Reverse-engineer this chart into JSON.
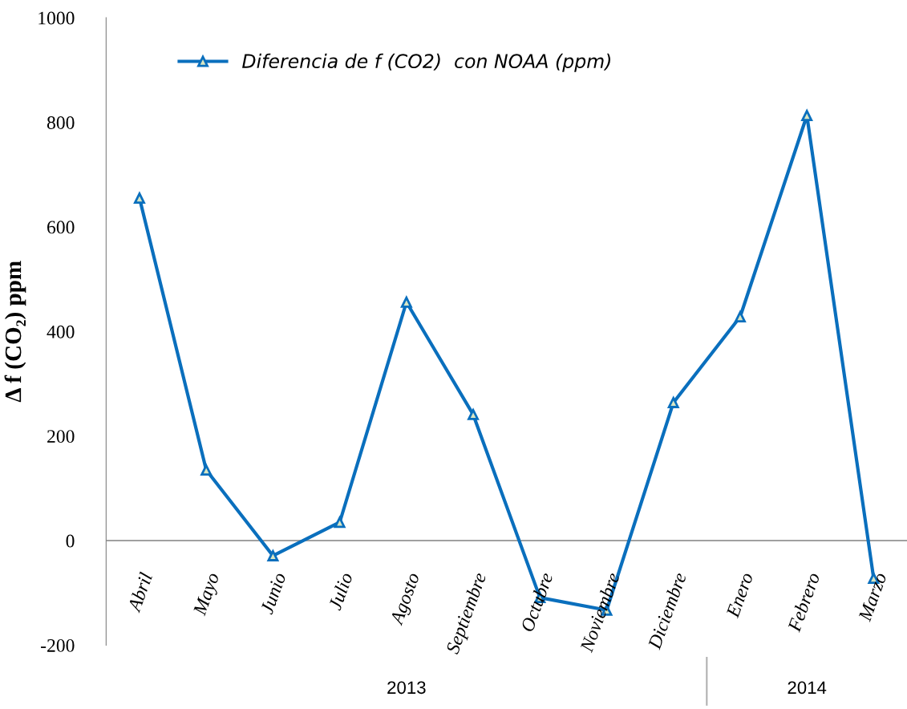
{
  "chart_data": {
    "type": "line",
    "ylabel": "Δ f (CO₂) ppm",
    "categories": [
      "Abril",
      "Mayo",
      "Junio",
      "Julio",
      "Agosto",
      "Septiembre",
      "Octubre",
      "Noviembre",
      "Diciembre",
      "Enero",
      "Febrero",
      "Marzo"
    ],
    "series": [
      {
        "name": "Diferencia de f (CO2)  con NOAA (ppm)",
        "color": "#0a6fbd",
        "values": [
          655,
          135,
          -29,
          35,
          456,
          241,
          -109,
          -133,
          264,
          428,
          813,
          -72
        ]
      }
    ],
    "ylim": [
      -200,
      1000
    ],
    "yticks": [
      -200,
      0,
      200,
      400,
      600,
      800,
      1000
    ],
    "annotations": [
      "2013",
      "2014"
    ],
    "marker": "triangle",
    "line_style": "solid",
    "legend": "top left",
    "grid": false
  }
}
